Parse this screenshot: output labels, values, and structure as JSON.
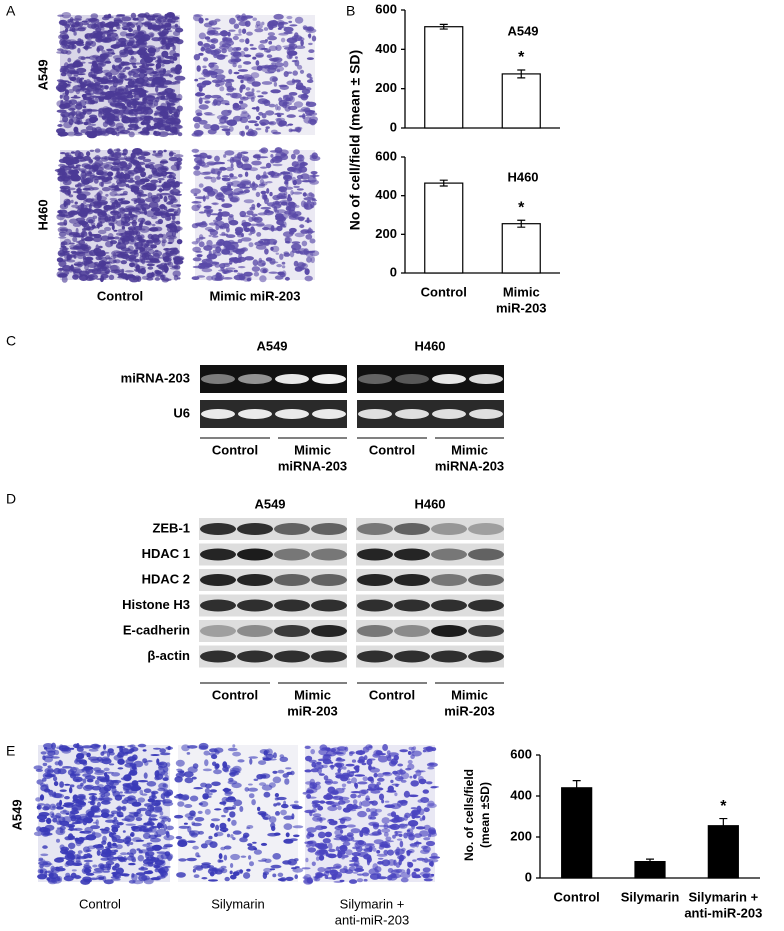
{
  "panel_labels": [
    "A",
    "B",
    "C",
    "D",
    "E"
  ],
  "panel_a": {
    "rows": [
      "A549",
      "H460"
    ],
    "columns": [
      "Control",
      "Mimic miR-203"
    ]
  },
  "panel_c": {
    "cell_lines": [
      "A549",
      "H460"
    ],
    "rows": [
      "miRNA-203",
      "U6"
    ],
    "groups": [
      [
        "Control"
      ],
      [
        "Mimic",
        "miRNA-203"
      ]
    ]
  },
  "panel_d": {
    "cell_lines": [
      "A549",
      "H460"
    ],
    "rows": [
      "ZEB-1",
      "HDAC 1",
      "HDAC 2",
      "Histone H3",
      "E-cadherin",
      "β-actin"
    ],
    "groups": [
      [
        "Control"
      ],
      [
        "Mimic",
        "miR-203"
      ]
    ]
  },
  "panel_e": {
    "row": "A549",
    "captions": [
      [
        "Control"
      ],
      [
        "Silymarin"
      ],
      [
        "Silymarin +",
        "anti-miR-203"
      ]
    ]
  },
  "chart_data": [
    {
      "type": "bar",
      "series_label": "A549",
      "ylabel": "No of cell/field (mean ± SD)",
      "values": [
        515,
        275
      ],
      "errors": [
        12,
        20
      ],
      "significance": [
        null,
        "*"
      ],
      "color": "#ffffff",
      "edge_color": "#000000",
      "ylim": [
        0,
        600
      ],
      "yticks": [
        0,
        200,
        400,
        600
      ]
    },
    {
      "type": "bar",
      "series_label": "H460",
      "categories": [
        [
          "Control"
        ],
        [
          "Mimic",
          "miR-203"
        ]
      ],
      "values": [
        465,
        255
      ],
      "errors": [
        15,
        18
      ],
      "significance": [
        null,
        "*"
      ],
      "color": "#ffffff",
      "edge_color": "#000000",
      "ylim": [
        0,
        600
      ],
      "yticks": [
        0,
        200,
        400,
        600
      ]
    },
    {
      "type": "bar",
      "ylabel": [
        "No. of cells/field",
        "(mean ±SD)"
      ],
      "categories": [
        [
          "Control"
        ],
        [
          "Silymarin"
        ],
        [
          "Silymarin +",
          "anti-miR-203"
        ]
      ],
      "values": [
        440,
        80,
        255
      ],
      "errors": [
        35,
        12,
        35
      ],
      "significance": [
        null,
        null,
        "*"
      ],
      "color": "#000000",
      "edge_color": "#000000",
      "ylim": [
        0,
        600
      ],
      "yticks": [
        0,
        200,
        400,
        600
      ]
    }
  ]
}
